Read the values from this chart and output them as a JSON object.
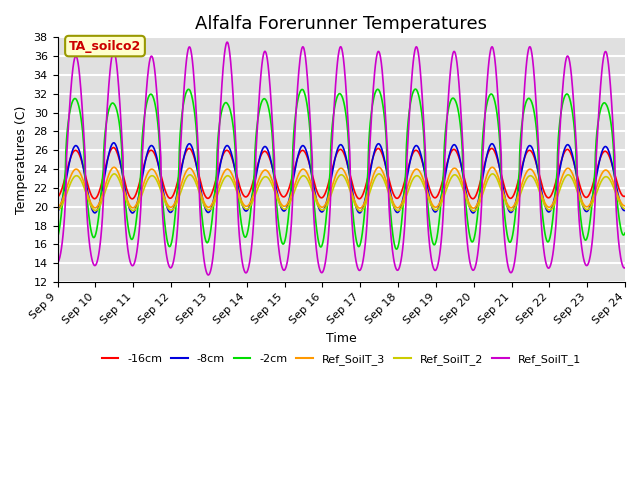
{
  "title": "Alfalfa Forerunner Temperatures",
  "xlabel": "Time",
  "ylabel": "Temperatures (C)",
  "ylim": [
    12,
    38
  ],
  "x_tick_labels": [
    "Sep 9",
    "Sep 10",
    "Sep 11",
    "Sep 12",
    "Sep 13",
    "Sep 14",
    "Sep 15",
    "Sep 16",
    "Sep 17",
    "Sep 18",
    "Sep 19",
    "Sep 20",
    "Sep 21",
    "Sep 22",
    "Sep 23",
    "Sep 24"
  ],
  "legend_labels": [
    "-16cm",
    "-8cm",
    "-2cm",
    "Ref_SoilT_3",
    "Ref_SoilT_2",
    "Ref_SoilT_1"
  ],
  "line_colors": [
    "#ff0000",
    "#0000dd",
    "#00dd00",
    "#ff9900",
    "#cccc00",
    "#cc00cc"
  ],
  "annotation_text": "TA_soilco2",
  "annotation_color": "#cc0000",
  "annotation_bg": "#ffffcc",
  "annotation_edge": "#999900",
  "background_color": "#e0e0e0",
  "grid_color": "#ffffff",
  "title_fontsize": 13,
  "axis_label_fontsize": 9,
  "tick_fontsize": 8
}
